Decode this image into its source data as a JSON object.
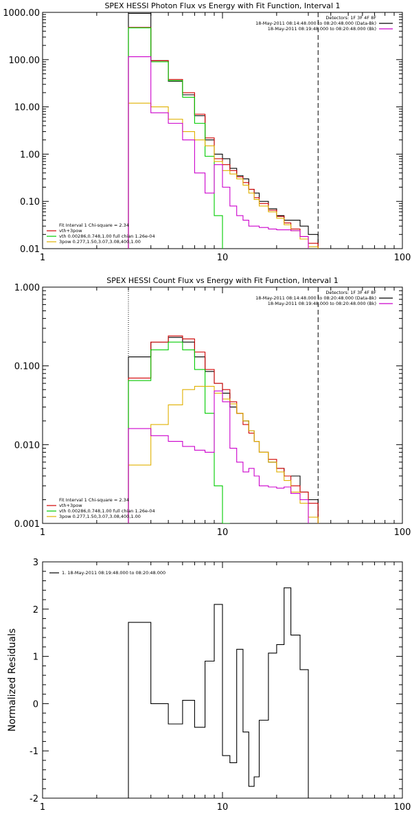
{
  "chart_data": [
    {
      "type": "line",
      "title": "SPEX HESSI Photon Flux vs Energy with Fit Function, Interval 1",
      "xscale": "log",
      "yscale": "log",
      "xlim": [
        1,
        100
      ],
      "ylim": [
        0.01,
        1000
      ],
      "grid": false,
      "x_ticks": [
        "1",
        "10",
        "100"
      ],
      "y_ticks": [
        "0.01",
        "0.10",
        "1.00",
        "10.00",
        "100.00",
        "1000.00"
      ],
      "legend_top_right": {
        "lines": [
          "Detectors: 1F 3F 4F 8F",
          "18-May-2011 08:14:48.000 to 08:20:48.000 (Data-Bk)",
          "18-May-2011 08:19:48.000 to 08:20:48.000 (Bk)"
        ],
        "colors": [
          "#000000",
          "#000000",
          "#cc00cc"
        ]
      },
      "legend_bottom_left": {
        "lines": [
          "Fit Interval 1   Chi-square = 2.34",
          "vth+3pow",
          "vth 0.00286,0.748,1.00  full chian 1.26e-04",
          "3pow 0.277,1.50,3.07,3.08,400,1.00"
        ],
        "colors": [
          "#000000",
          "#d00000",
          "#00cc00",
          "#e0b000"
        ]
      },
      "vlines": [
        {
          "x": 3.0,
          "style": "dotted"
        },
        {
          "x": 34,
          "style": "dashed"
        }
      ],
      "series": [
        {
          "color": "#000000",
          "edges": [
            3.0,
            4.0,
            5.0,
            6.0,
            7.0,
            8.0,
            9.0,
            10.0,
            11.0,
            12.0,
            13.0,
            14.0,
            15.0,
            16.0,
            18.0,
            20.0,
            22.0,
            24.0,
            27.0,
            30.0,
            34.0
          ],
          "values": [
            950,
            95,
            35,
            18,
            6.5,
            2.0,
            1.0,
            0.8,
            0.5,
            0.35,
            0.3,
            0.18,
            0.15,
            0.1,
            0.07,
            0.05,
            0.04,
            0.04,
            0.03,
            0.02
          ]
        },
        {
          "color": "#d00000",
          "edges": [
            3.0,
            4.0,
            5.0,
            6.0,
            7.0,
            8.0,
            9.0,
            10.0,
            11.0,
            12.0,
            13.0,
            14.0,
            15.0,
            16.0,
            18.0,
            20.0,
            22.0,
            24.0,
            27.0,
            30.0,
            34.0
          ],
          "values": [
            480,
            95,
            38,
            20,
            7.0,
            2.2,
            0.8,
            0.6,
            0.45,
            0.33,
            0.25,
            0.18,
            0.12,
            0.09,
            0.065,
            0.048,
            0.035,
            0.026,
            0.018,
            0.013
          ]
        },
        {
          "color": "#00cc00",
          "edges": [
            3.0,
            4.0,
            5.0,
            6.0,
            7.0,
            8.0,
            9.0,
            10.0
          ],
          "values": [
            470,
            90,
            36,
            16,
            4.5,
            0.9,
            0.05
          ]
        },
        {
          "color": "#e0b000",
          "edges": [
            3.0,
            4.0,
            5.0,
            6.0,
            7.0,
            8.0,
            9.0,
            10.0,
            11.0,
            12.0,
            13.0,
            14.0,
            15.0,
            16.0,
            18.0,
            20.0,
            22.0,
            24.0,
            27.0,
            30.0,
            34.0
          ],
          "values": [
            12,
            10,
            5.5,
            3.0,
            2.0,
            1.5,
            0.7,
            0.45,
            0.38,
            0.3,
            0.22,
            0.15,
            0.11,
            0.08,
            0.06,
            0.044,
            0.032,
            0.024,
            0.016,
            0.011
          ]
        },
        {
          "color": "#cc00cc",
          "edges": [
            3.0,
            4.0,
            5.0,
            6.0,
            7.0,
            8.0,
            9.0,
            10.0,
            11.0,
            12.0,
            13.0,
            14.0,
            15.0,
            16.0,
            18.0,
            20.0,
            22.0,
            24.0,
            27.0,
            30.0
          ],
          "values": [
            115,
            7.5,
            4.5,
            2.0,
            0.4,
            0.15,
            0.6,
            0.2,
            0.08,
            0.05,
            0.04,
            0.03,
            0.03,
            0.028,
            0.026,
            0.025,
            0.025,
            0.024,
            0.018
          ]
        }
      ]
    },
    {
      "type": "line",
      "title": "SPEX HESSI Count Flux vs Energy with Fit Function, Interval 1",
      "xscale": "log",
      "yscale": "log",
      "xlim": [
        1,
        100
      ],
      "ylim": [
        0.001,
        1.0
      ],
      "grid": false,
      "x_ticks": [
        "1",
        "10",
        "100"
      ],
      "y_ticks": [
        "0.001",
        "0.010",
        "0.100",
        "1.000"
      ],
      "legend_top_right": {
        "lines": [
          "Detectors: 1F 3F 4F 8F",
          "18-May-2011 08:14:48.000 to 08:20:48.000 (Data-Bk)",
          "18-May-2011 08:19:48.000 to 08:20:48.000 (Bk)"
        ],
        "colors": [
          "#000000",
          "#000000",
          "#cc00cc"
        ]
      },
      "legend_bottom_left": {
        "lines": [
          "Fit Interval 1   Chi-square = 2.34",
          "vth+3pow",
          "vth 0.00286,0.748,1.00  full chian 1.26e-04",
          "3pow 0.277,1.50,3.07,3.08,400,1.00"
        ],
        "colors": [
          "#000000",
          "#d00000",
          "#00cc00",
          "#e0b000"
        ]
      },
      "vlines": [
        {
          "x": 3.0,
          "style": "dotted"
        },
        {
          "x": 34,
          "style": "dashed"
        }
      ],
      "series": [
        {
          "color": "#000000",
          "edges": [
            3.0,
            4.0,
            5.0,
            6.0,
            7.0,
            8.0,
            9.0,
            10.0,
            11.0,
            12.0,
            13.0,
            14.0,
            15.0,
            16.0,
            18.0,
            20.0,
            22.0,
            24.0,
            27.0,
            30.0,
            34.0
          ],
          "values": [
            0.13,
            0.2,
            0.23,
            0.2,
            0.13,
            0.085,
            0.06,
            0.045,
            0.03,
            0.025,
            0.02,
            0.015,
            0.011,
            0.008,
            0.006,
            0.005,
            0.004,
            0.004,
            0.0025,
            0.002
          ]
        },
        {
          "color": "#d00000",
          "edges": [
            3.0,
            4.0,
            5.0,
            6.0,
            7.0,
            8.0,
            9.0,
            10.0,
            11.0,
            12.0,
            13.0,
            14.0,
            15.0,
            16.0,
            18.0,
            20.0,
            22.0,
            24.0,
            27.0,
            30.0,
            34.0
          ],
          "values": [
            0.07,
            0.2,
            0.24,
            0.22,
            0.15,
            0.09,
            0.06,
            0.05,
            0.035,
            0.025,
            0.018,
            0.014,
            0.011,
            0.008,
            0.0065,
            0.005,
            0.004,
            0.003,
            0.0025,
            0.0018
          ]
        },
        {
          "color": "#00cc00",
          "edges": [
            3.0,
            4.0,
            5.0,
            6.0,
            7.0,
            8.0,
            9.0,
            10.0,
            11.0
          ],
          "values": [
            0.065,
            0.16,
            0.2,
            0.16,
            0.09,
            0.025,
            0.003,
            0.001
          ]
        },
        {
          "color": "#e0b000",
          "edges": [
            3.0,
            4.0,
            5.0,
            6.0,
            7.0,
            8.0,
            9.0,
            10.0,
            11.0,
            12.0,
            13.0,
            14.0,
            15.0,
            16.0,
            18.0,
            20.0,
            22.0,
            24.0,
            27.0,
            30.0,
            34.0,
            37.0
          ],
          "values": [
            0.0055,
            0.018,
            0.032,
            0.05,
            0.055,
            0.055,
            0.045,
            0.038,
            0.033,
            0.025,
            0.02,
            0.015,
            0.011,
            0.008,
            0.006,
            0.0045,
            0.0035,
            0.0025,
            0.0018,
            0.0012,
            0.0009
          ]
        },
        {
          "color": "#cc00cc",
          "edges": [
            3.0,
            4.0,
            5.0,
            6.0,
            7.0,
            8.0,
            9.0,
            10.0,
            11.0,
            12.0,
            13.0,
            14.0,
            15.0,
            16.0,
            18.0,
            20.0,
            22.0,
            24.0,
            27.0,
            30.0
          ],
          "values": [
            0.016,
            0.013,
            0.011,
            0.0095,
            0.0085,
            0.008,
            0.048,
            0.035,
            0.009,
            0.006,
            0.0045,
            0.005,
            0.004,
            0.003,
            0.0029,
            0.0028,
            0.0029,
            0.0024,
            0.002
          ]
        }
      ]
    },
    {
      "type": "line",
      "title": "",
      "ylabel": "Normalized Residuals",
      "xscale": "log",
      "yscale": "linear",
      "xlim": [
        1,
        100
      ],
      "ylim": [
        -2,
        3
      ],
      "grid": false,
      "x_ticks": [
        "1",
        "10",
        "100"
      ],
      "y_ticks": [
        "-2",
        "-1",
        "0",
        "1",
        "2",
        "3"
      ],
      "legend_top_left": {
        "lines": [
          "1. 18-May-2011 08:19:48.000 to 08:20:48.000"
        ],
        "colors": [
          "#000000"
        ]
      },
      "series": [
        {
          "color": "#000000",
          "edges": [
            3.0,
            4.0,
            5.0,
            6.0,
            7.0,
            8.0,
            9.0,
            10.0,
            11.0,
            12.0,
            13.0,
            14.0,
            15.0,
            16.0,
            18.0,
            20.0,
            22.0,
            24.0,
            27.0,
            30.0,
            34.0
          ],
          "values": [
            1.72,
            0.0,
            -0.43,
            0.07,
            -0.5,
            0.9,
            2.1,
            -1.1,
            -1.25,
            1.15,
            -0.6,
            -1.75,
            -1.55,
            -0.35,
            1.07,
            1.25,
            2.45,
            1.45,
            0.72,
            -2.2
          ]
        }
      ]
    }
  ]
}
